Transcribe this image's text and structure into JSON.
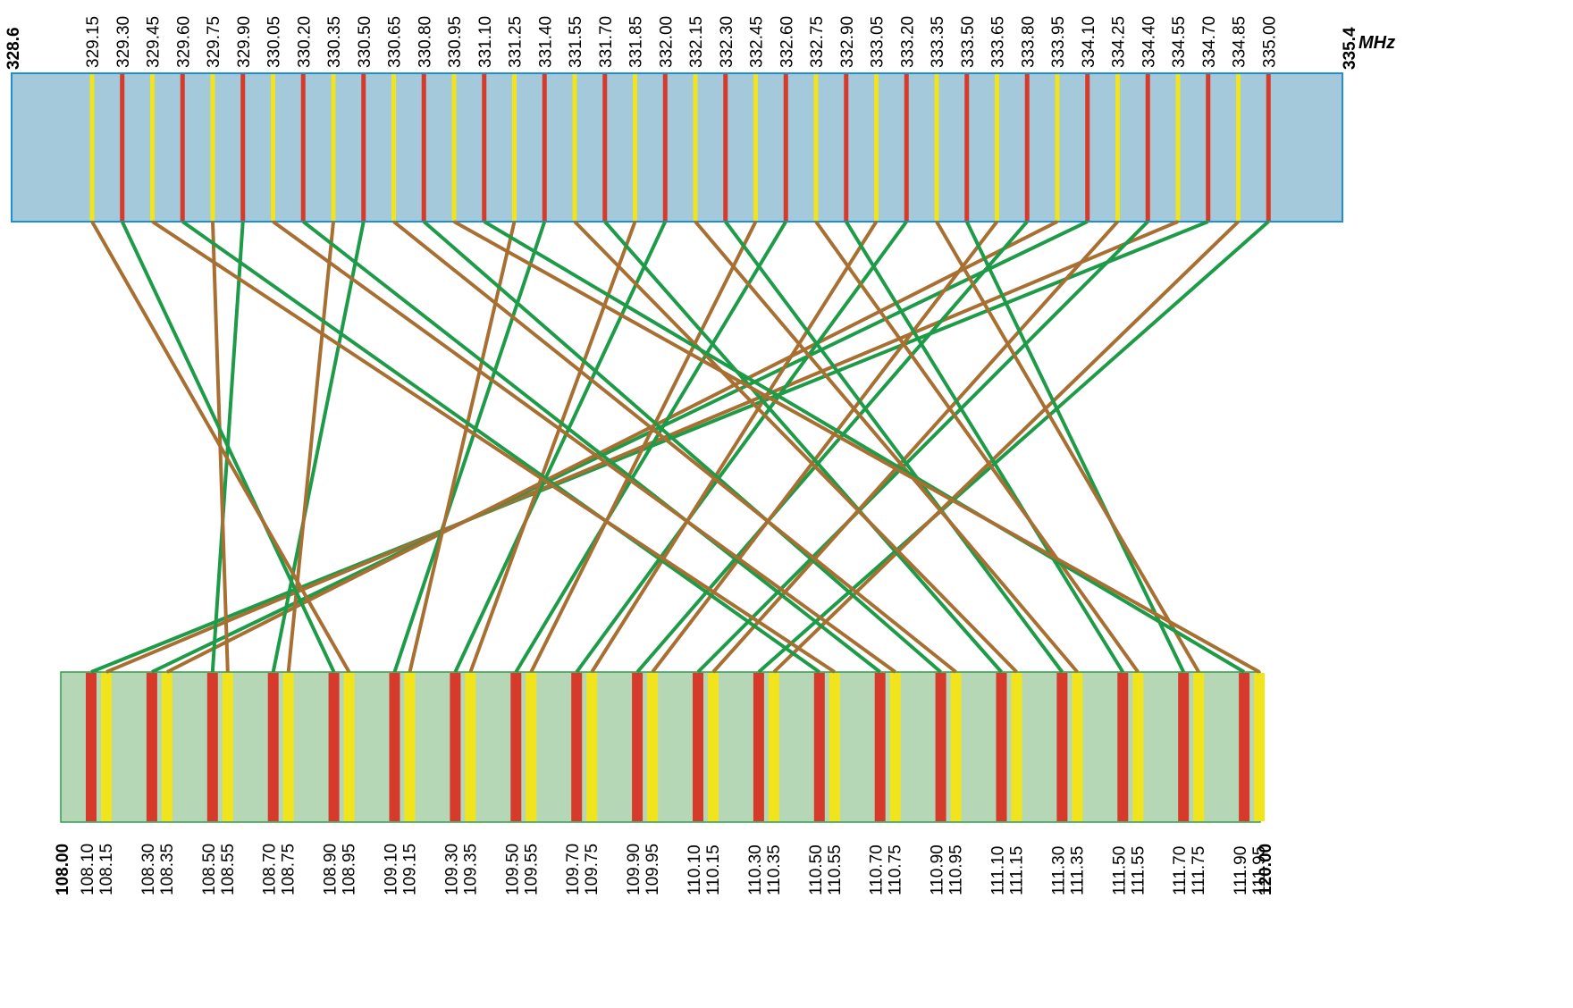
{
  "colors": {
    "uhf_band_fill": "#a3c9db",
    "uhf_band_stroke": "#1f8fd0",
    "vhf_band_fill": "#b5d7b6",
    "vhf_band_stroke": "#2e9d4a",
    "red_channel": "#d63a2a",
    "yellow_channel": "#f2e41c",
    "green_link": "#1e9b48",
    "brown_link": "#a86f32"
  },
  "uhf": {
    "min_label": "328.6",
    "max_label": "335.4",
    "unit": "MHz",
    "channels": [
      "329.15",
      "329.30",
      "329.45",
      "329.60",
      "329.75",
      "329.90",
      "330.05",
      "330.20",
      "330.35",
      "330.50",
      "330.65",
      "330.80",
      "330.95",
      "331.10",
      "331.25",
      "331.40",
      "331.55",
      "331.70",
      "331.85",
      "332.00",
      "332.15",
      "332.30",
      "332.45",
      "332.60",
      "332.75",
      "332.90",
      "333.05",
      "333.20",
      "333.35",
      "333.50",
      "333.65",
      "333.80",
      "333.95",
      "334.10",
      "334.25",
      "334.40",
      "334.55",
      "334.70",
      "334.85",
      "335.00"
    ]
  },
  "vhf": {
    "min_label": "108.00",
    "max_label": "120.00",
    "channels": [
      "108.10",
      "108.15",
      "108.30",
      "108.35",
      "108.50",
      "108.55",
      "108.70",
      "108.75",
      "108.90",
      "108.95",
      "109.10",
      "109.15",
      "109.30",
      "109.35",
      "109.50",
      "109.55",
      "109.70",
      "109.75",
      "109.90",
      "109.95",
      "110.10",
      "110.15",
      "110.30",
      "110.35",
      "110.50",
      "110.55",
      "110.70",
      "110.75",
      "110.90",
      "110.95",
      "111.10",
      "111.15",
      "111.30",
      "111.35",
      "111.50",
      "111.55",
      "111.70",
      "111.75",
      "111.90",
      "111.95"
    ]
  },
  "pairs": [
    {
      "vhf": "108.10",
      "uhf": "334.70"
    },
    {
      "vhf": "108.15",
      "uhf": "334.55"
    },
    {
      "vhf": "108.30",
      "uhf": "334.10"
    },
    {
      "vhf": "108.35",
      "uhf": "333.95"
    },
    {
      "vhf": "108.50",
      "uhf": "329.90"
    },
    {
      "vhf": "108.55",
      "uhf": "329.75"
    },
    {
      "vhf": "108.70",
      "uhf": "330.50"
    },
    {
      "vhf": "108.75",
      "uhf": "330.35"
    },
    {
      "vhf": "108.90",
      "uhf": "329.30"
    },
    {
      "vhf": "108.95",
      "uhf": "329.15"
    },
    {
      "vhf": "109.10",
      "uhf": "331.40"
    },
    {
      "vhf": "109.15",
      "uhf": "331.25"
    },
    {
      "vhf": "109.30",
      "uhf": "332.00"
    },
    {
      "vhf": "109.35",
      "uhf": "331.85"
    },
    {
      "vhf": "109.50",
      "uhf": "332.60"
    },
    {
      "vhf": "109.55",
      "uhf": "332.45"
    },
    {
      "vhf": "109.70",
      "uhf": "333.20"
    },
    {
      "vhf": "109.75",
      "uhf": "333.05"
    },
    {
      "vhf": "109.90",
      "uhf": "333.80"
    },
    {
      "vhf": "109.95",
      "uhf": "333.65"
    },
    {
      "vhf": "110.10",
      "uhf": "334.40"
    },
    {
      "vhf": "110.15",
      "uhf": "334.25"
    },
    {
      "vhf": "110.30",
      "uhf": "335.00"
    },
    {
      "vhf": "110.35",
      "uhf": "334.85"
    },
    {
      "vhf": "110.50",
      "uhf": "329.60"
    },
    {
      "vhf": "110.55",
      "uhf": "329.45"
    },
    {
      "vhf": "110.70",
      "uhf": "330.20"
    },
    {
      "vhf": "110.75",
      "uhf": "330.05"
    },
    {
      "vhf": "110.90",
      "uhf": "330.80"
    },
    {
      "vhf": "110.95",
      "uhf": "330.65"
    },
    {
      "vhf": "111.10",
      "uhf": "331.70"
    },
    {
      "vhf": "111.15",
      "uhf": "331.55"
    },
    {
      "vhf": "111.30",
      "uhf": "332.30"
    },
    {
      "vhf": "111.35",
      "uhf": "332.15"
    },
    {
      "vhf": "111.50",
      "uhf": "332.90"
    },
    {
      "vhf": "111.55",
      "uhf": "332.75"
    },
    {
      "vhf": "111.70",
      "uhf": "333.50"
    },
    {
      "vhf": "111.75",
      "uhf": "333.35"
    },
    {
      "vhf": "111.90",
      "uhf": "331.10"
    },
    {
      "vhf": "111.95",
      "uhf": "330.95"
    }
  ]
}
